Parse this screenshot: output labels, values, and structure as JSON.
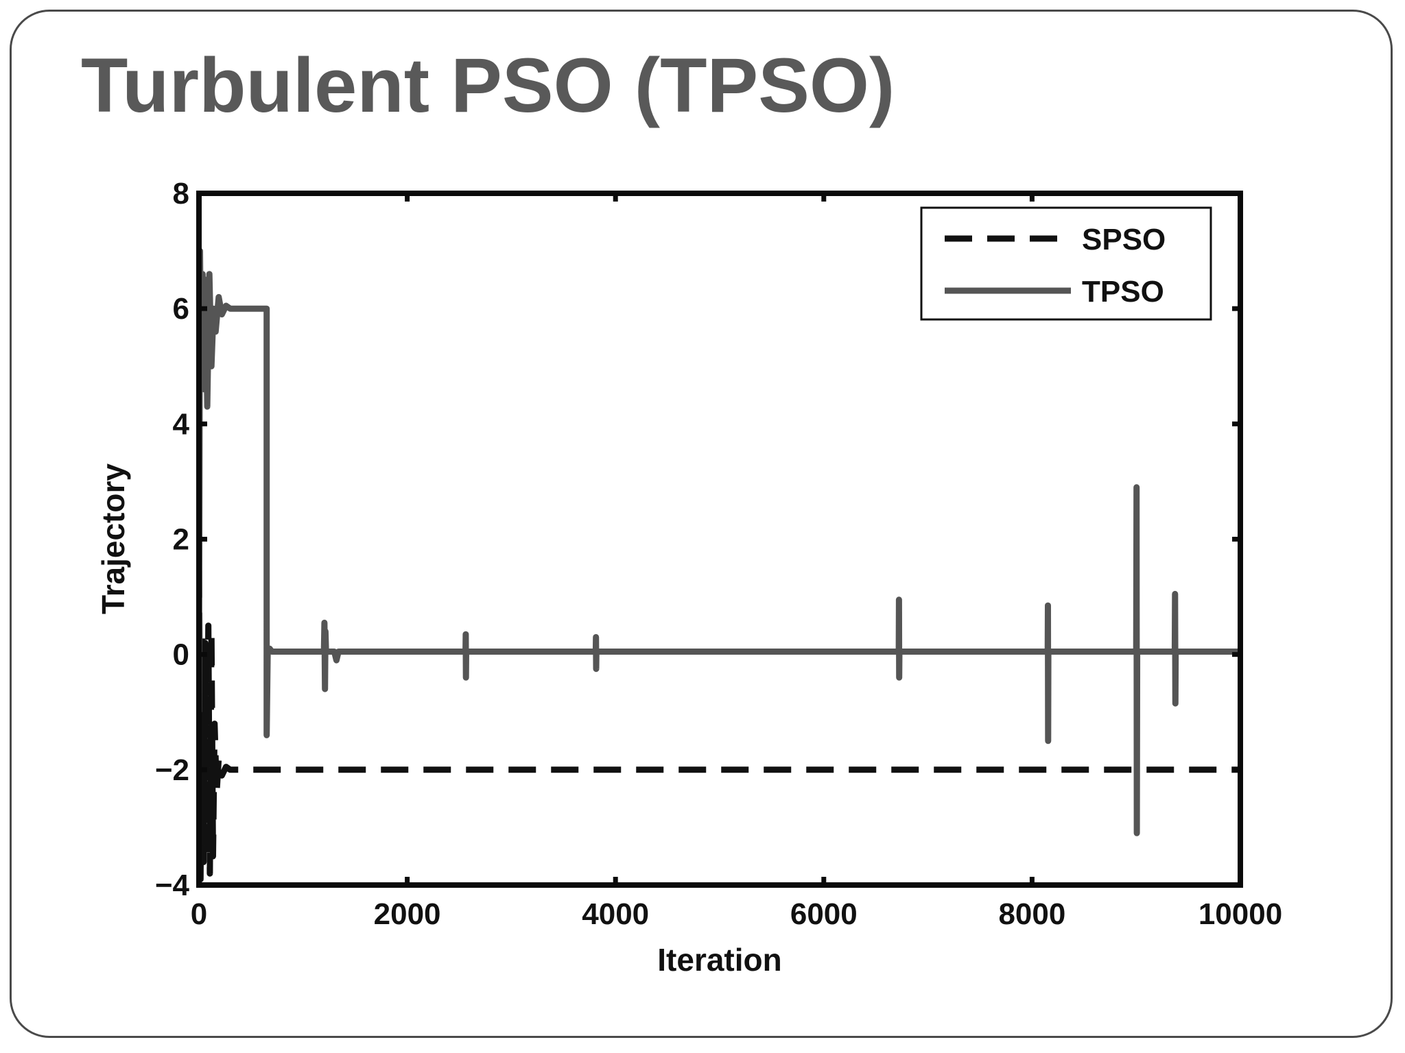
{
  "slide": {
    "title": "Turbulent PSO (TPSO)"
  },
  "chart_data": {
    "type": "line",
    "title": "",
    "xlabel": "Iteration",
    "ylabel": "Trajectory",
    "xlim": [
      0,
      10000
    ],
    "ylim": [
      -4,
      8
    ],
    "xticks": [
      0,
      2000,
      4000,
      6000,
      8000,
      10000
    ],
    "yticks": [
      -4,
      -2,
      0,
      2,
      4,
      6,
      8
    ],
    "ytick_labels": [
      "−4",
      "−2",
      "0",
      "2",
      "4",
      "6",
      "8"
    ],
    "grid": false,
    "legend_position": "top-right",
    "series": [
      {
        "name": "SPSO",
        "style": "dashed",
        "color": "#111111",
        "x": [
          0,
          15,
          30,
          45,
          60,
          75,
          90,
          105,
          120,
          135,
          150,
          170,
          190,
          220,
          260,
          300,
          10000
        ],
        "y": [
          2.2,
          -3.9,
          0.3,
          -3.6,
          0.2,
          -3.3,
          0.5,
          -3.8,
          0.4,
          -3.5,
          -1.2,
          -2.4,
          -1.8,
          -2.1,
          -1.95,
          -2.0,
          -2.0
        ]
      },
      {
        "name": "TPSO",
        "style": "solid",
        "color": "#555555",
        "x": [
          0,
          10,
          20,
          35,
          50,
          65,
          80,
          100,
          120,
          140,
          160,
          190,
          220,
          260,
          300,
          650,
          650,
          660,
          680,
          700,
          1200,
          1205,
          1210,
          1215,
          1220,
          1230,
          1300,
          1320,
          1340,
          2560,
          2562,
          2564,
          2566,
          2580,
          3810,
          3812,
          3814,
          3816,
          3830,
          6720,
          6722,
          6724,
          6726,
          6740,
          8150,
          8152,
          8154,
          8156,
          8170,
          9000,
          9003,
          9006,
          9009,
          9030,
          9370,
          9373,
          9376,
          9379,
          9400,
          10000
        ],
        "y": [
          -1.0,
          7.0,
          4.8,
          6.6,
          4.6,
          6.5,
          4.3,
          6.6,
          5.0,
          6.0,
          5.6,
          6.2,
          5.9,
          6.05,
          6.0,
          6.0,
          -1.4,
          0.05,
          0.1,
          0.05,
          0.05,
          0.55,
          -0.6,
          0.4,
          0.05,
          0.05,
          0.05,
          -0.1,
          0.05,
          0.05,
          0.35,
          -0.4,
          0.05,
          0.05,
          0.05,
          0.3,
          -0.25,
          0.05,
          0.05,
          0.05,
          0.95,
          -0.4,
          0.05,
          0.05,
          0.05,
          0.85,
          -1.5,
          0.05,
          0.05,
          0.05,
          2.9,
          -3.1,
          0.05,
          0.05,
          0.05,
          1.05,
          -0.85,
          0.05,
          0.05,
          0.05
        ]
      }
    ]
  }
}
